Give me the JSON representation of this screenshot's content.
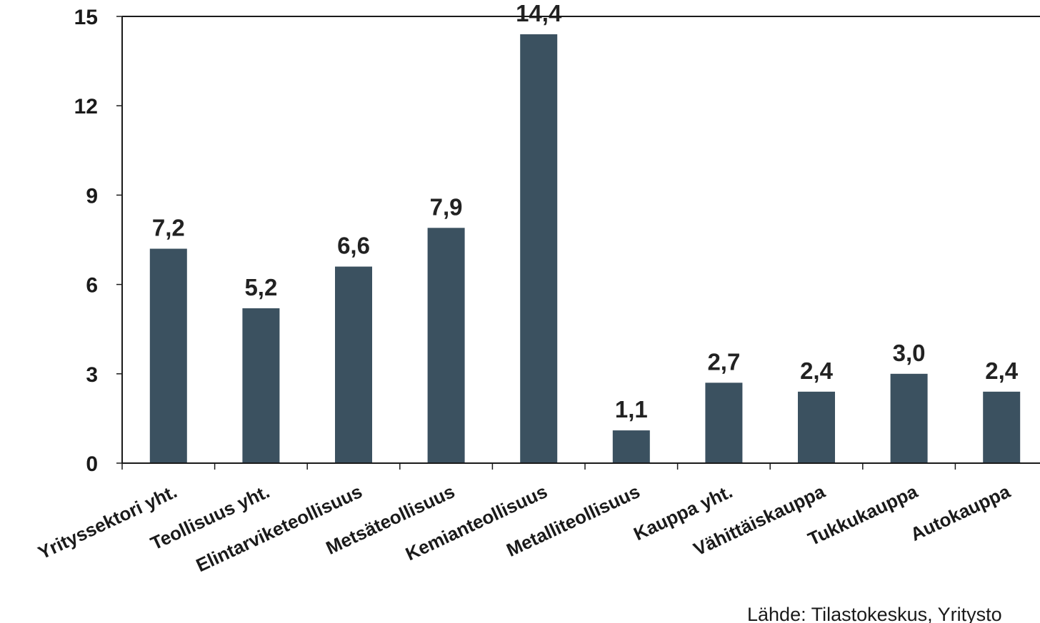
{
  "chart_data": {
    "type": "bar",
    "categories": [
      "Yrityssektori yht.",
      "Teollisuus yht.",
      "Elintarviketeollisuus",
      "Metsäteollisuus",
      "Kemianteollisuus",
      "Metalliteollisuus",
      "Kauppa yht.",
      "Vähittäiskauppa",
      "Tukkukauppa",
      "Autokauppa"
    ],
    "values": [
      7.2,
      5.2,
      6.6,
      7.9,
      14.4,
      1.1,
      2.7,
      2.4,
      3.0,
      2.4
    ],
    "value_labels": [
      "7,2",
      "5,2",
      "6,6",
      "7,9",
      "14,4",
      "1,1",
      "2,7",
      "2,4",
      "3,0",
      "2,4"
    ],
    "yticks": [
      0,
      3,
      6,
      9,
      12,
      15
    ],
    "ylim": [
      0,
      15
    ],
    "title": "",
    "xlabel": "",
    "ylabel": "",
    "grid": false,
    "bar_color": "#3b5160",
    "source_note": "Lähde: Tilastokeskus, Yritysto"
  }
}
